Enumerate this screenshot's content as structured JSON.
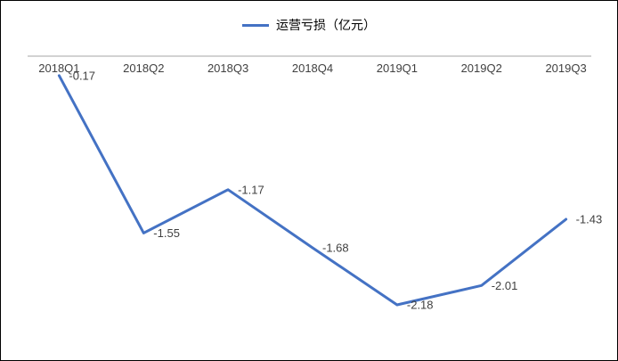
{
  "chart_data": {
    "type": "line",
    "title": "",
    "legend_label": "运营亏损（亿元）",
    "legend_position": "top",
    "categories": [
      "2018Q1",
      "2018Q2",
      "2018Q3",
      "2018Q4",
      "2019Q1",
      "2019Q2",
      "2019Q3"
    ],
    "series": [
      {
        "name": "运营亏损（亿元）",
        "values": [
          -0.17,
          -1.55,
          -1.17,
          -1.68,
          -2.18,
          -2.01,
          -1.43
        ]
      }
    ],
    "data_labels": [
      "-0.17",
      "-1.55",
      "-1.17",
      "-1.68",
      "-2.18",
      "-2.01",
      "-1.43"
    ],
    "xlabel": "",
    "ylabel": "",
    "ylim": [
      -2.6,
      0.2
    ],
    "grid": false,
    "data_labels_shown": true,
    "colors": {
      "line": "#4472C4",
      "text": "#404040",
      "axis": "#A6A6A6",
      "background": "#FFFFFF",
      "border": "#000000"
    }
  }
}
